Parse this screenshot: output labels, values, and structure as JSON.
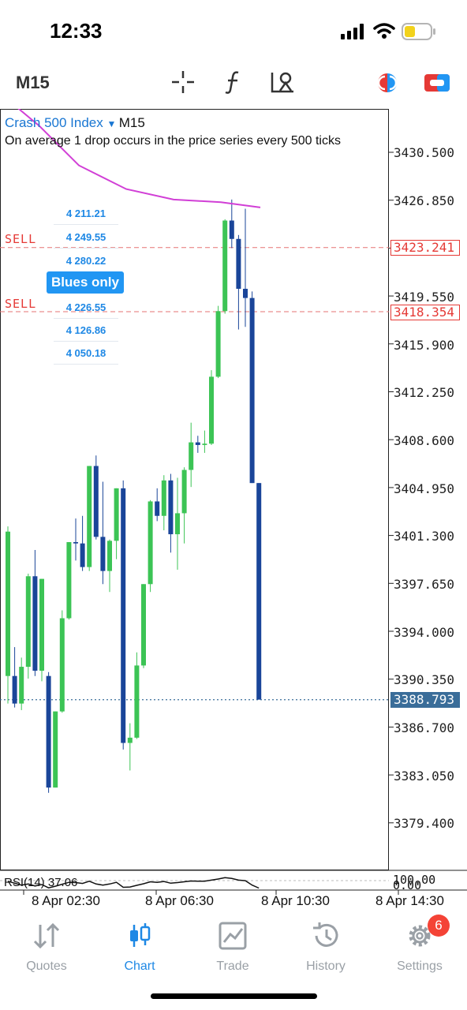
{
  "status_bar": {
    "time": "12:33"
  },
  "toolbar": {
    "timeframe": "M15"
  },
  "symbol": {
    "name": "Crash 500 Index",
    "timeframe": "M15",
    "description": "On average 1 drop occurs in the price series every 500 ticks"
  },
  "ladder": {
    "title": "Blues only",
    "prices_top": [
      "4 211.21",
      "4 249.55",
      "4 280.22"
    ],
    "prices_bottom": [
      "4 226.55",
      "4 126.86",
      "4 050.18"
    ]
  },
  "orders": [
    {
      "label": "SELL",
      "price": "3423.241"
    },
    {
      "label": "SELL",
      "price": "3418.354"
    }
  ],
  "current_price": "3388.793",
  "price_axis": [
    "3430.500",
    "3426.850",
    "3419.550",
    "3415.900",
    "3412.250",
    "3408.600",
    "3404.950",
    "3401.300",
    "3397.650",
    "3394.000",
    "3390.350",
    "3386.700",
    "3383.050",
    "3379.400"
  ],
  "rsi": {
    "label": "RSI(14) 37.06",
    "top": "100.00",
    "bottom": "0.00"
  },
  "time_axis": [
    "8 Apr 02:30",
    "8 Apr 06:30",
    "8 Apr 10:30",
    "8 Apr 14:30"
  ],
  "nav": {
    "quotes": "Quotes",
    "chart": "Chart",
    "trade": "Trade",
    "history": "History",
    "settings": "Settings",
    "settings_badge": "6"
  },
  "colors": {
    "bull": "#3cc455",
    "bear": "#1a4599",
    "ma": "#d13fd6",
    "sell": "#e53935",
    "accent": "#1e88e5"
  },
  "chart_data": {
    "type": "candlestick",
    "title": "",
    "ylim": [
      3376.0,
      3435.0
    ],
    "grid": false,
    "moving_average": [
      3435.0,
      3432.5,
      3429.5,
      3427.7,
      3426.9,
      3426.7,
      3426.3
    ],
    "candles": [
      {
        "o": 3390.6,
        "h": 3402.0,
        "l": 3388.5,
        "c": 3401.6
      },
      {
        "o": 3390.6,
        "h": 3392.8,
        "l": 3388.2,
        "c": 3388.5
      },
      {
        "o": 3388.5,
        "h": 3392.0,
        "l": 3388.0,
        "c": 3391.3
      },
      {
        "o": 3391.3,
        "h": 3398.4,
        "l": 3390.4,
        "c": 3398.2
      },
      {
        "o": 3398.2,
        "h": 3400.2,
        "l": 3390.6,
        "c": 3391.0
      },
      {
        "o": 3391.0,
        "h": 3398.0,
        "l": 3390.2,
        "c": 3398.0
      },
      {
        "o": 3390.6,
        "h": 3390.9,
        "l": 3381.7,
        "c": 3382.1
      },
      {
        "o": 3382.1,
        "h": 3387.9,
        "l": 3382.1,
        "c": 3387.9
      },
      {
        "o": 3387.9,
        "h": 3395.6,
        "l": 3387.8,
        "c": 3395.0
      },
      {
        "o": 3395.0,
        "h": 3400.8,
        "l": 3394.9,
        "c": 3400.8
      },
      {
        "o": 3400.8,
        "h": 3402.6,
        "l": 3399.4,
        "c": 3400.7
      },
      {
        "o": 3400.7,
        "h": 3402.8,
        "l": 3398.6,
        "c": 3398.9
      },
      {
        "o": 3398.9,
        "h": 3406.6,
        "l": 3398.6,
        "c": 3406.6
      },
      {
        "o": 3406.6,
        "h": 3407.4,
        "l": 3401.0,
        "c": 3401.2
      },
      {
        "o": 3401.2,
        "h": 3405.4,
        "l": 3397.6,
        "c": 3398.6
      },
      {
        "o": 3398.6,
        "h": 3401.0,
        "l": 3397.0,
        "c": 3400.9
      },
      {
        "o": 3400.9,
        "h": 3404.9,
        "l": 3399.5,
        "c": 3404.9
      },
      {
        "o": 3404.9,
        "h": 3405.5,
        "l": 3385.0,
        "c": 3385.5
      },
      {
        "o": 3385.5,
        "h": 3387.0,
        "l": 3383.4,
        "c": 3385.9
      },
      {
        "o": 3385.9,
        "h": 3392.4,
        "l": 3385.8,
        "c": 3391.4
      },
      {
        "o": 3391.4,
        "h": 3397.6,
        "l": 3391.2,
        "c": 3397.6
      },
      {
        "o": 3397.6,
        "h": 3404.0,
        "l": 3397.0,
        "c": 3403.9
      },
      {
        "o": 3403.9,
        "h": 3404.9,
        "l": 3402.4,
        "c": 3402.8
      },
      {
        "o": 3402.8,
        "h": 3405.9,
        "l": 3401.7,
        "c": 3405.5
      },
      {
        "o": 3405.5,
        "h": 3406.0,
        "l": 3400.0,
        "c": 3401.4
      },
      {
        "o": 3401.4,
        "h": 3405.7,
        "l": 3398.7,
        "c": 3403.0
      },
      {
        "o": 3403.0,
        "h": 3406.5,
        "l": 3400.7,
        "c": 3406.3
      },
      {
        "o": 3406.3,
        "h": 3409.9,
        "l": 3405.0,
        "c": 3408.4
      },
      {
        "o": 3408.4,
        "h": 3408.9,
        "l": 3407.6,
        "c": 3408.2
      },
      {
        "o": 3408.2,
        "h": 3409.3,
        "l": 3407.6,
        "c": 3408.3
      },
      {
        "o": 3408.3,
        "h": 3413.9,
        "l": 3408.2,
        "c": 3413.4
      },
      {
        "o": 3413.4,
        "h": 3418.8,
        "l": 3413.3,
        "c": 3418.4
      },
      {
        "o": 3418.4,
        "h": 3425.4,
        "l": 3418.2,
        "c": 3425.3
      },
      {
        "o": 3425.3,
        "h": 3426.9,
        "l": 3423.2,
        "c": 3423.9
      },
      {
        "o": 3423.9,
        "h": 3424.2,
        "l": 3417.0,
        "c": 3420.1
      },
      {
        "o": 3420.1,
        "h": 3426.2,
        "l": 3417.2,
        "c": 3419.4
      },
      {
        "o": 3419.4,
        "h": 3419.9,
        "l": 3405.3,
        "c": 3405.3
      },
      {
        "o": 3405.3,
        "h": 3405.3,
        "l": 3388.8,
        "c": 3388.8
      }
    ],
    "rsi_values": [
      62,
      55,
      48,
      52,
      45,
      50,
      38,
      44,
      51,
      58,
      57,
      54,
      62,
      52,
      48,
      52,
      58,
      40,
      41,
      47,
      53,
      60,
      58,
      61,
      55,
      57,
      60,
      63,
      62,
      62,
      66,
      70,
      75,
      72,
      66,
      64,
      48,
      37
    ]
  }
}
